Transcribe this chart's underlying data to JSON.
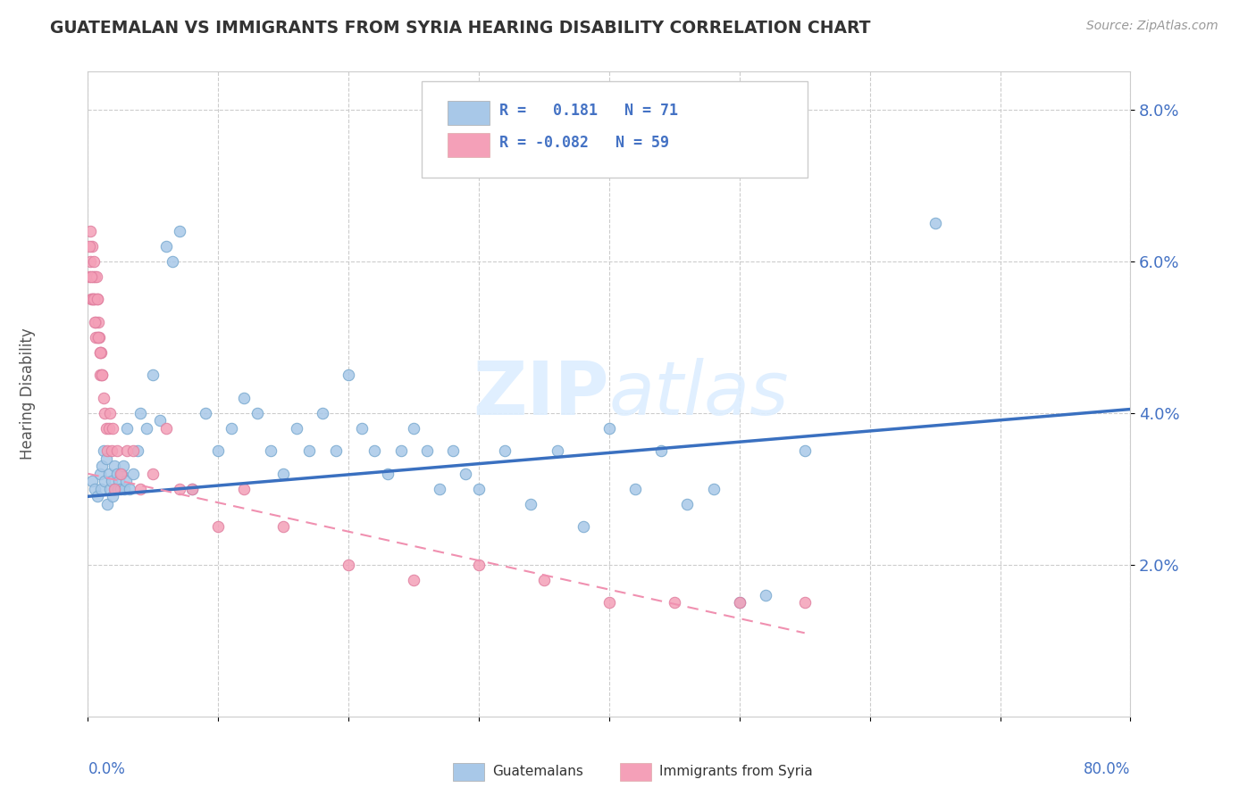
{
  "title": "GUATEMALAN VS IMMIGRANTS FROM SYRIA HEARING DISABILITY CORRELATION CHART",
  "source": "Source: ZipAtlas.com",
  "ylabel": "Hearing Disability",
  "xlim": [
    0.0,
    80.0
  ],
  "ylim": [
    0.0,
    8.5
  ],
  "ytick_vals": [
    2.0,
    4.0,
    6.0,
    8.0
  ],
  "ytick_labels": [
    "2.0%",
    "4.0%",
    "6.0%",
    "8.0%"
  ],
  "color_blue": "#a8c8e8",
  "color_pink": "#f4a0b8",
  "color_blue_line": "#3a70c0",
  "color_pink_line": "#f090b0",
  "color_blue_text": "#4472c4",
  "background_color": "#ffffff",
  "grid_color": "#cccccc",
  "watermark_color": "#ddeeff",
  "guatemalans_x": [
    0.3,
    0.5,
    0.7,
    0.9,
    1.0,
    1.1,
    1.2,
    1.3,
    1.4,
    1.5,
    1.6,
    1.7,
    1.8,
    1.9,
    2.0,
    2.1,
    2.2,
    2.3,
    2.4,
    2.5,
    2.6,
    2.7,
    2.8,
    2.9,
    3.0,
    3.2,
    3.5,
    3.8,
    4.0,
    4.5,
    5.0,
    5.5,
    6.0,
    6.5,
    7.0,
    8.0,
    9.0,
    10.0,
    11.0,
    12.0,
    13.0,
    14.0,
    15.0,
    16.0,
    17.0,
    18.0,
    19.0,
    20.0,
    21.0,
    22.0,
    23.0,
    24.0,
    25.0,
    26.0,
    27.0,
    28.0,
    29.0,
    30.0,
    32.0,
    34.0,
    36.0,
    38.0,
    40.0,
    42.0,
    44.0,
    46.0,
    48.0,
    50.0,
    52.0,
    55.0,
    65.0
  ],
  "guatemalans_y": [
    3.1,
    3.0,
    2.9,
    3.2,
    3.0,
    3.3,
    3.5,
    3.1,
    3.4,
    2.8,
    3.2,
    3.0,
    3.1,
    2.9,
    3.3,
    3.0,
    3.2,
    3.0,
    3.1,
    3.0,
    3.2,
    3.3,
    3.0,
    3.1,
    3.8,
    3.0,
    3.2,
    3.5,
    4.0,
    3.8,
    4.5,
    3.9,
    6.2,
    6.0,
    6.4,
    3.0,
    4.0,
    3.5,
    3.8,
    4.2,
    4.0,
    3.5,
    3.2,
    3.8,
    3.5,
    4.0,
    3.5,
    4.5,
    3.8,
    3.5,
    3.2,
    3.5,
    3.8,
    3.5,
    3.0,
    3.5,
    3.2,
    3.0,
    3.5,
    2.8,
    3.5,
    2.5,
    3.8,
    3.0,
    3.5,
    2.8,
    3.0,
    1.5,
    1.6,
    3.5,
    6.5
  ],
  "syria_x": [
    0.1,
    0.15,
    0.2,
    0.25,
    0.3,
    0.35,
    0.4,
    0.45,
    0.5,
    0.55,
    0.6,
    0.65,
    0.7,
    0.75,
    0.8,
    0.85,
    0.9,
    0.95,
    1.0,
    1.1,
    1.2,
    1.3,
    1.4,
    1.5,
    1.6,
    1.7,
    1.8,
    1.9,
    2.0,
    2.2,
    2.5,
    3.0,
    3.5,
    4.0,
    5.0,
    6.0,
    7.0,
    8.0,
    10.0,
    12.0,
    15.0,
    20.0,
    25.0,
    30.0,
    35.0,
    40.0,
    45.0,
    50.0,
    55.0,
    0.12,
    0.22,
    0.32,
    0.42,
    0.52,
    0.62,
    0.72,
    0.82,
    0.92,
    1.05
  ],
  "syria_y": [
    5.8,
    6.4,
    6.0,
    5.5,
    6.2,
    5.8,
    5.5,
    6.0,
    5.8,
    5.5,
    5.2,
    5.8,
    5.0,
    5.5,
    5.2,
    5.0,
    4.8,
    4.5,
    4.8,
    4.5,
    4.2,
    4.0,
    3.8,
    3.5,
    3.8,
    4.0,
    3.5,
    3.8,
    3.0,
    3.5,
    3.2,
    3.5,
    3.5,
    3.0,
    3.2,
    3.8,
    3.0,
    3.0,
    2.5,
    3.0,
    2.5,
    2.0,
    1.8,
    2.0,
    1.8,
    1.5,
    1.5,
    1.5,
    1.5,
    6.2,
    5.8,
    5.5,
    5.5,
    5.2,
    5.0,
    5.5,
    5.0,
    4.8,
    4.5
  ]
}
